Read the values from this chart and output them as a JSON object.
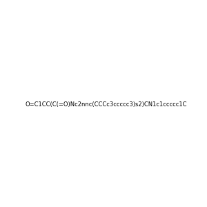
{
  "smiles": "O=C1CC(C(=O)Nc2nnc(CCCc3ccccc3)s2)CN1c1ccccc1C",
  "title": "",
  "img_size": [
    300,
    300
  ],
  "background_color": "#e8e8e8",
  "bond_color": "#000000",
  "atom_colors": {
    "N": "#0000ff",
    "O": "#ff0000",
    "S": "#cccc00",
    "H": "#00aaaa"
  }
}
